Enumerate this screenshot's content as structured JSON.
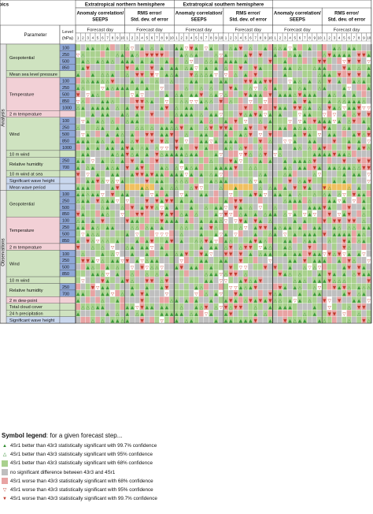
{
  "header": {
    "regions": [
      "Extratropical northern hemisphere",
      "Extratropical southern hemisphere",
      "Tropics"
    ],
    "score_left": [
      "Anomaly correlation/",
      "SEEPS"
    ],
    "score_right": [
      "RMS error/",
      "Std. dev. of error"
    ],
    "parameter_label": "Parameter",
    "level_label": [
      "Level",
      "(hPa)"
    ],
    "forecast_day_label": "Forecast day",
    "days": [
      "1",
      "2",
      "3",
      "4",
      "5",
      "6",
      "7",
      "8",
      "9",
      "10"
    ]
  },
  "sections": {
    "analysis": "Analysis",
    "observations": "Observations"
  },
  "parameters": {
    "analysis": [
      {
        "name": "Geopotential",
        "levels": [
          "100",
          "250",
          "500",
          "850"
        ]
      },
      {
        "name": "Mean sea level pressure",
        "levels": [
          ""
        ]
      },
      {
        "name": "Temperature",
        "levels": [
          "100",
          "250",
          "500",
          "850",
          "1000"
        ]
      },
      {
        "name": "2 m temperature",
        "levels": [
          ""
        ]
      },
      {
        "name": "Wind",
        "levels": [
          "100",
          "250",
          "500",
          "850",
          "1000"
        ]
      },
      {
        "name": "10 m wind",
        "levels": [
          ""
        ]
      },
      {
        "name": "Relative humidity",
        "levels": [
          "250",
          "700"
        ]
      },
      {
        "name": "10 m wind at sea",
        "levels": [
          ""
        ]
      },
      {
        "name": "Significant wave height",
        "levels": [
          ""
        ]
      },
      {
        "name": "Mean wave period",
        "levels": [
          ""
        ]
      }
    ],
    "observations": [
      {
        "name": "Geopotential",
        "levels": [
          "100",
          "250",
          "500",
          "850"
        ]
      },
      {
        "name": "Temperature",
        "levels": [
          "100",
          "250",
          "500",
          "850"
        ]
      },
      {
        "name": "2 m temperature",
        "levels": [
          ""
        ]
      },
      {
        "name": "Wind",
        "levels": [
          "100",
          "250",
          "500",
          "850"
        ]
      },
      {
        "name": "10 m wind",
        "levels": [
          ""
        ]
      },
      {
        "name": "Relative humidity",
        "levels": [
          "250",
          "700"
        ]
      },
      {
        "name": "2 m dew-point",
        "levels": [
          ""
        ]
      },
      {
        "name": "Total cloud cover",
        "levels": [
          ""
        ]
      },
      {
        "name": "24 h precipitation",
        "levels": [
          ""
        ]
      },
      {
        "name": "Significant wave height",
        "levels": [
          ""
        ]
      }
    ]
  },
  "legend": {
    "title_bold": "Symbol legend",
    "title_rest": ": for a given forecast step...",
    "items": [
      {
        "symbol": "▲",
        "text": "4Sr1 better than 43r3 statistically significant with 99.7% confidence",
        "fill": "#ffffff",
        "color": "#2e8b2e"
      },
      {
        "symbol": "△",
        "text": "4Sr1 better than 43r3 statistically significant with 95% confidence",
        "fill": "#ffffff",
        "color": "#2e8b2e"
      },
      {
        "symbol": "",
        "text": "4Sr1 better than 43r3 statistically significant with 68% confidence",
        "fill": "#a9d18e",
        "color": "#2e8b2e"
      },
      {
        "symbol": "",
        "text": "no significant difference between 43r3 and 4Sr1",
        "fill": "#bfbfbf",
        "color": "#666666"
      },
      {
        "symbol": "",
        "text": "4Sr1 worse than 43r3 statistically significant with 68% confidence",
        "fill": "#e8a3a3",
        "color": "#c0392b"
      },
      {
        "symbol": "▽",
        "text": "4Sr1 worse than 43r3 statistically significant with 95% confidence",
        "fill": "#ffffff",
        "color": "#c0392b"
      },
      {
        "symbol": "▼",
        "text": "4Sr1 worse than 43r3 statistically significant with 99.7% confidence",
        "fill": "#ffffff",
        "color": "#c0392b"
      }
    ]
  },
  "colors": {
    "better_strong": "#3a9a3a",
    "better_68": "#a9d18e",
    "neutral": "#bfbfbf",
    "worse_68": "#e8a3a3",
    "worse_strong": "#c0392b",
    "wave_worse": "#f0c060",
    "level_blue": "#8fa8d8",
    "param_green": "#cfe3c0",
    "param_pink": "#f2d0d6",
    "param_blue": "#c9d7ee"
  }
}
